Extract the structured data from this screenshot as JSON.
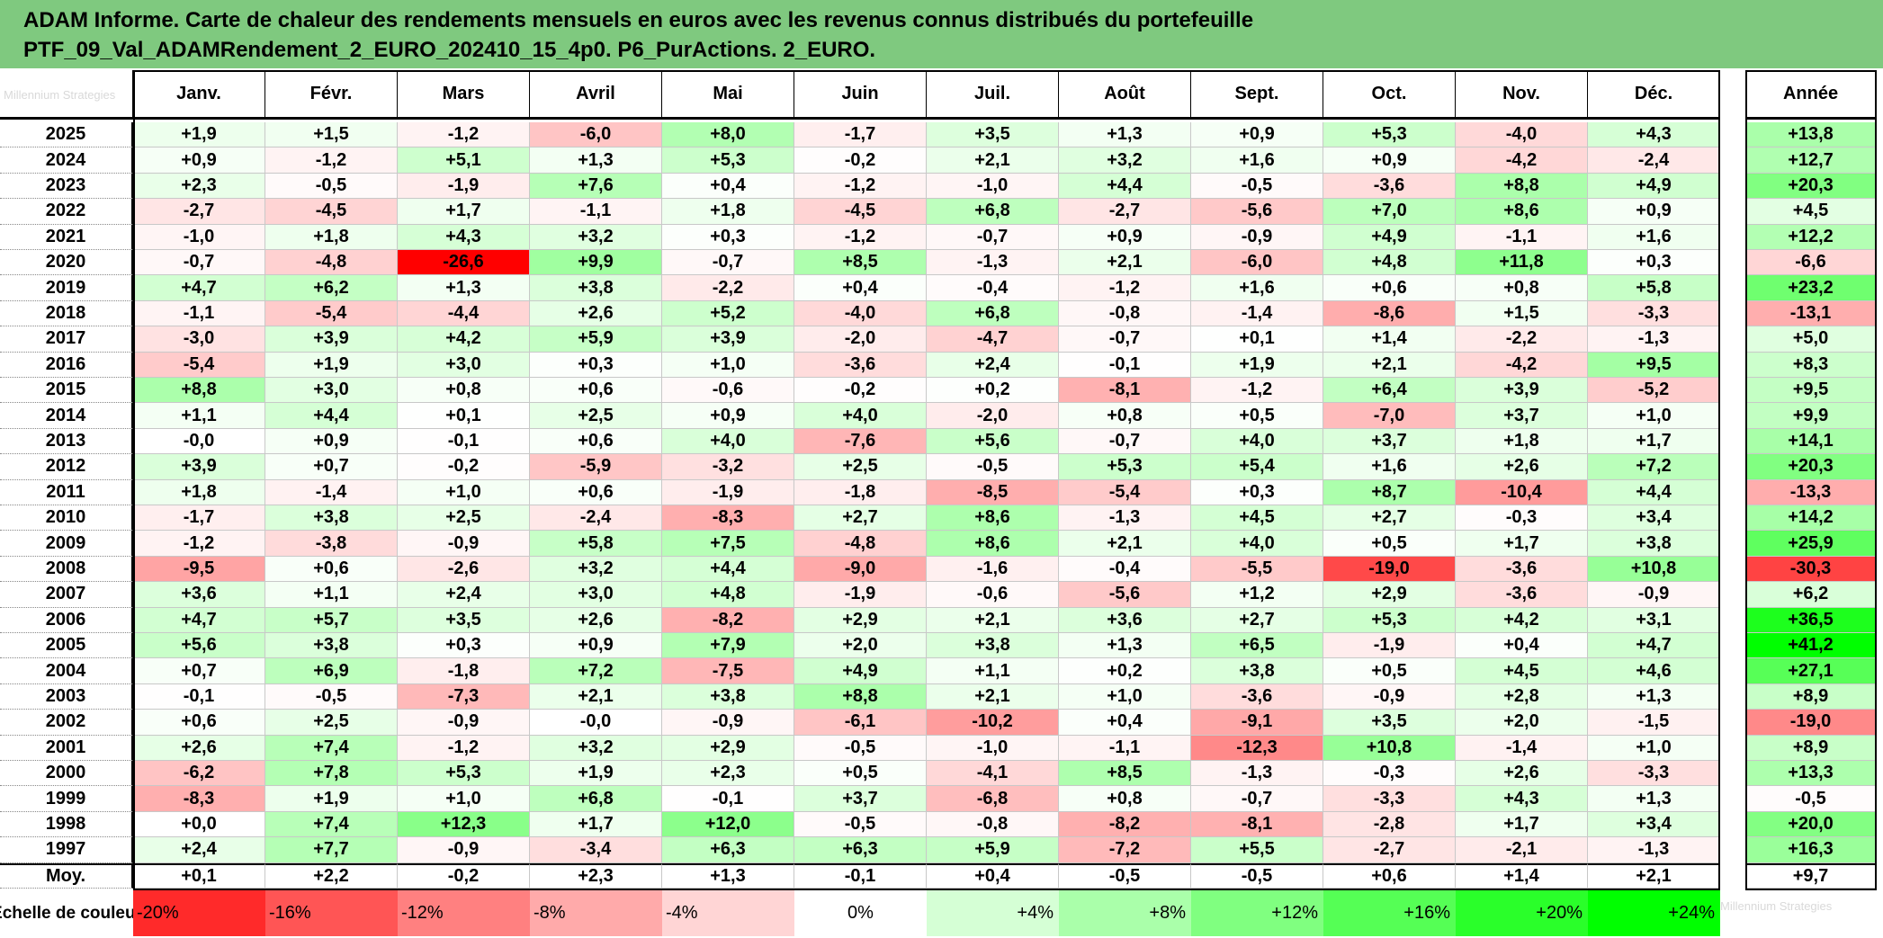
{
  "title_line1": "ADAM Informe. Carte de chaleur des rendements mensuels en euros avec les revenus connus distribués du portefeuille",
  "title_line2": "PTF_09_Val_ADAMRendement_2_EURO_202410_15_4p0. P6_PurActions. 2_EURO.",
  "watermark_top": "Millennium Strategies",
  "watermark_bottom": "Millennium Strategies",
  "colors": {
    "title_bg": "#7fc97f",
    "negative_max": "#ff0000",
    "positive_max": "#00ff00",
    "neutral": "#ffffff"
  },
  "chart_data": {
    "type": "heatmap",
    "columns": [
      "Janv.",
      "Févr.",
      "Mars",
      "Avril",
      "Mai",
      "Juin",
      "Juil.",
      "Août",
      "Sept.",
      "Oct.",
      "Nov.",
      "Déc."
    ],
    "year_column": "Année",
    "rows": [
      {
        "label": "2025",
        "values": [
          "+1,9",
          "+1,5",
          "-1,2",
          "-6,0",
          "+8,0",
          "-1,7",
          "+3,5",
          "+1,3",
          "+0,9",
          "+5,3",
          "-4,0",
          "+4,3"
        ],
        "year": "+13,8"
      },
      {
        "label": "2024",
        "values": [
          "+0,9",
          "-1,2",
          "+5,1",
          "+1,3",
          "+5,3",
          "-0,2",
          "+2,1",
          "+3,2",
          "+1,6",
          "+0,9",
          "-4,2",
          "-2,4"
        ],
        "year": "+12,7"
      },
      {
        "label": "2023",
        "values": [
          "+2,3",
          "-0,5",
          "-1,9",
          "+7,6",
          "+0,4",
          "-1,2",
          "-1,0",
          "+4,4",
          "-0,5",
          "-3,6",
          "+8,8",
          "+4,9"
        ],
        "year": "+20,3"
      },
      {
        "label": "2022",
        "values": [
          "-2,7",
          "-4,5",
          "+1,7",
          "-1,1",
          "+1,8",
          "-4,5",
          "+6,8",
          "-2,7",
          "-5,6",
          "+7,0",
          "+8,6",
          "+0,9"
        ],
        "year": "+4,5"
      },
      {
        "label": "2021",
        "values": [
          "-1,0",
          "+1,8",
          "+4,3",
          "+3,2",
          "+0,3",
          "-1,2",
          "-0,7",
          "+0,9",
          "-0,9",
          "+4,9",
          "-1,1",
          "+1,6"
        ],
        "year": "+12,2"
      },
      {
        "label": "2020",
        "values": [
          "-0,7",
          "-4,8",
          "-26,6",
          "+9,9",
          "-0,7",
          "+8,5",
          "-1,3",
          "+2,1",
          "-6,0",
          "+4,8",
          "+11,8",
          "+0,3"
        ],
        "year": "-6,6"
      },
      {
        "label": "2019",
        "values": [
          "+4,7",
          "+6,2",
          "+1,3",
          "+3,8",
          "-2,2",
          "+0,4",
          "-0,4",
          "-1,2",
          "+1,6",
          "+0,6",
          "+0,8",
          "+5,8"
        ],
        "year": "+23,2"
      },
      {
        "label": "2018",
        "values": [
          "-1,1",
          "-5,4",
          "-4,4",
          "+2,6",
          "+5,2",
          "-4,0",
          "+6,8",
          "-0,8",
          "-1,4",
          "-8,6",
          "+1,5",
          "-3,3"
        ],
        "year": "-13,1"
      },
      {
        "label": "2017",
        "values": [
          "-3,0",
          "+3,9",
          "+4,2",
          "+5,9",
          "+3,9",
          "-2,0",
          "-4,7",
          "-0,7",
          "+0,1",
          "+1,4",
          "-2,2",
          "-1,3"
        ],
        "year": "+5,0"
      },
      {
        "label": "2016",
        "values": [
          "-5,4",
          "+1,9",
          "+3,0",
          "+0,3",
          "+1,0",
          "-3,6",
          "+2,4",
          "-0,1",
          "+1,9",
          "+2,1",
          "-4,2",
          "+9,5"
        ],
        "year": "+8,3"
      },
      {
        "label": "2015",
        "values": [
          "+8,8",
          "+3,0",
          "+0,8",
          "+0,6",
          "-0,6",
          "-0,2",
          "+0,2",
          "-8,1",
          "-1,2",
          "+6,4",
          "+3,9",
          "-5,2"
        ],
        "year": "+9,5"
      },
      {
        "label": "2014",
        "values": [
          "+1,1",
          "+4,4",
          "+0,1",
          "+2,5",
          "+0,9",
          "+4,0",
          "-2,0",
          "+0,8",
          "+0,5",
          "-7,0",
          "+3,7",
          "+1,0"
        ],
        "year": "+9,9"
      },
      {
        "label": "2013",
        "values": [
          "-0,0",
          "+0,9",
          "-0,1",
          "+0,6",
          "+4,0",
          "-7,6",
          "+5,6",
          "-0,7",
          "+4,0",
          "+3,7",
          "+1,8",
          "+1,7"
        ],
        "year": "+14,1"
      },
      {
        "label": "2012",
        "values": [
          "+3,9",
          "+0,7",
          "-0,2",
          "-5,9",
          "-3,2",
          "+2,5",
          "-0,5",
          "+5,3",
          "+5,4",
          "+1,6",
          "+2,6",
          "+7,2"
        ],
        "year": "+20,3"
      },
      {
        "label": "2011",
        "values": [
          "+1,8",
          "-1,4",
          "+1,0",
          "+0,6",
          "-1,9",
          "-1,8",
          "-8,5",
          "-5,4",
          "+0,3",
          "+8,7",
          "-10,4",
          "+4,4"
        ],
        "year": "-13,3"
      },
      {
        "label": "2010",
        "values": [
          "-1,7",
          "+3,8",
          "+2,5",
          "-2,4",
          "-8,3",
          "+2,7",
          "+8,6",
          "-1,3",
          "+4,5",
          "+2,7",
          "-0,3",
          "+3,4"
        ],
        "year": "+14,2"
      },
      {
        "label": "2009",
        "values": [
          "-1,2",
          "-3,8",
          "-0,9",
          "+5,8",
          "+7,5",
          "-4,8",
          "+8,6",
          "+2,1",
          "+4,0",
          "+0,5",
          "+1,7",
          "+3,8"
        ],
        "year": "+25,9"
      },
      {
        "label": "2008",
        "values": [
          "-9,5",
          "+0,6",
          "-2,6",
          "+3,2",
          "+4,4",
          "-9,0",
          "-1,6",
          "-0,4",
          "-5,5",
          "-19,0",
          "-3,6",
          "+10,8"
        ],
        "year": "-30,3"
      },
      {
        "label": "2007",
        "values": [
          "+3,6",
          "+1,1",
          "+2,4",
          "+3,0",
          "+4,8",
          "-1,9",
          "-0,6",
          "-5,6",
          "+1,2",
          "+2,9",
          "-3,6",
          "-0,9"
        ],
        "year": "+6,2"
      },
      {
        "label": "2006",
        "values": [
          "+4,7",
          "+5,7",
          "+3,5",
          "+2,6",
          "-8,2",
          "+2,9",
          "+2,1",
          "+3,6",
          "+2,7",
          "+5,3",
          "+4,2",
          "+3,1"
        ],
        "year": "+36,5"
      },
      {
        "label": "2005",
        "values": [
          "+5,6",
          "+3,8",
          "+0,3",
          "+0,9",
          "+7,9",
          "+2,0",
          "+3,8",
          "+1,3",
          "+6,5",
          "-1,9",
          "+0,4",
          "+4,7"
        ],
        "year": "+41,2"
      },
      {
        "label": "2004",
        "values": [
          "+0,7",
          "+6,9",
          "-1,8",
          "+7,2",
          "-7,5",
          "+4,9",
          "+1,1",
          "+0,2",
          "+3,8",
          "+0,5",
          "+4,5",
          "+4,6"
        ],
        "year": "+27,1"
      },
      {
        "label": "2003",
        "values": [
          "-0,1",
          "-0,5",
          "-7,3",
          "+2,1",
          "+3,8",
          "+8,8",
          "+2,1",
          "+1,0",
          "-3,6",
          "-0,9",
          "+2,8",
          "+1,3"
        ],
        "year": "+8,9"
      },
      {
        "label": "2002",
        "values": [
          "+0,6",
          "+2,5",
          "-0,9",
          "-0,0",
          "-0,9",
          "-6,1",
          "-10,2",
          "+0,4",
          "-9,1",
          "+3,5",
          "+2,0",
          "-1,5"
        ],
        "year": "-19,0"
      },
      {
        "label": "2001",
        "values": [
          "+2,6",
          "+7,4",
          "-1,2",
          "+3,2",
          "+2,9",
          "-0,5",
          "-1,0",
          "-1,1",
          "-12,3",
          "+10,8",
          "-1,4",
          "+1,0"
        ],
        "year": "+8,9"
      },
      {
        "label": "2000",
        "values": [
          "-6,2",
          "+7,8",
          "+5,3",
          "+1,9",
          "+2,3",
          "+0,5",
          "-4,1",
          "+8,5",
          "-1,3",
          "-0,3",
          "+2,6",
          "-3,3"
        ],
        "year": "+13,3"
      },
      {
        "label": "1999",
        "values": [
          "-8,3",
          "+1,9",
          "+1,0",
          "+6,8",
          "-0,1",
          "+3,7",
          "-6,8",
          "+0,8",
          "-0,7",
          "-3,3",
          "+4,3",
          "+1,3"
        ],
        "year": "-0,5"
      },
      {
        "label": "1998",
        "values": [
          "+0,0",
          "+7,4",
          "+12,3",
          "+1,7",
          "+12,0",
          "-0,5",
          "-0,8",
          "-8,2",
          "-8,1",
          "-2,8",
          "+1,7",
          "+3,4"
        ],
        "year": "+20,0"
      },
      {
        "label": "1997",
        "values": [
          "+2,4",
          "+7,7",
          "-0,9",
          "-3,4",
          "+6,3",
          "+6,3",
          "+5,9",
          "-7,2",
          "+5,5",
          "-2,7",
          "-2,1",
          "-1,3"
        ],
        "year": "+16,3"
      }
    ],
    "average_row": {
      "label": "Moy.",
      "values": [
        "+0,1",
        "+2,2",
        "-0,2",
        "+2,3",
        "+1,3",
        "-0,1",
        "+0,4",
        "-0,5",
        "-0,5",
        "+0,6",
        "+1,4",
        "+2,1"
      ],
      "year": "+9,7"
    },
    "scale": {
      "label": "Echelle de couleur",
      "steps": [
        {
          "text": "-20%",
          "value": -20
        },
        {
          "text": "-16%",
          "value": -16
        },
        {
          "text": "-12%",
          "value": -12
        },
        {
          "text": "-8%",
          "value": -8
        },
        {
          "text": "-4%",
          "value": -4
        },
        {
          "text": "0%",
          "value": 0
        },
        {
          "text": "+4%",
          "value": 4
        },
        {
          "text": "+8%",
          "value": 8
        },
        {
          "text": "+12%",
          "value": 12
        },
        {
          "text": "+16%",
          "value": 16
        },
        {
          "text": "+20%",
          "value": 20
        },
        {
          "text": "+24%",
          "value": 24
        }
      ]
    }
  }
}
